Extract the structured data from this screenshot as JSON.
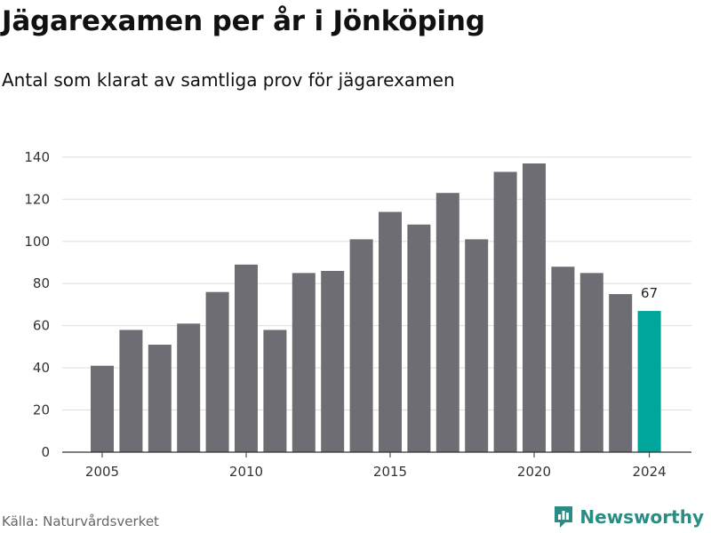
{
  "header": {
    "title": "Jägarexamen per år i Jönköping",
    "subtitle": "Antal som klarat av samtliga prov för jägarexamen"
  },
  "footer": {
    "source": "Källa: Naturvårdsverket",
    "brand": "Newsworthy"
  },
  "colors": {
    "bar": "#6e6d73",
    "highlight": "#00a69c",
    "grid": "#dddddd",
    "brand": "#2a8c82"
  },
  "chart_data": {
    "type": "bar",
    "categories": [
      2005,
      2006,
      2007,
      2008,
      2009,
      2010,
      2011,
      2012,
      2013,
      2014,
      2015,
      2016,
      2017,
      2018,
      2019,
      2020,
      2021,
      2022,
      2023,
      2024
    ],
    "values": [
      41,
      58,
      51,
      61,
      76,
      89,
      58,
      85,
      86,
      101,
      114,
      108,
      123,
      101,
      133,
      137,
      88,
      85,
      75,
      67
    ],
    "highlight_category": 2024,
    "data_labels": [
      {
        "category": 2024,
        "text": "67"
      }
    ],
    "x_ticks": [
      2005,
      2010,
      2015,
      2020,
      2024
    ],
    "y_ticks": [
      0,
      20,
      40,
      60,
      80,
      100,
      120,
      140
    ],
    "ylim": [
      0,
      145
    ],
    "grid": true,
    "legend": false
  }
}
